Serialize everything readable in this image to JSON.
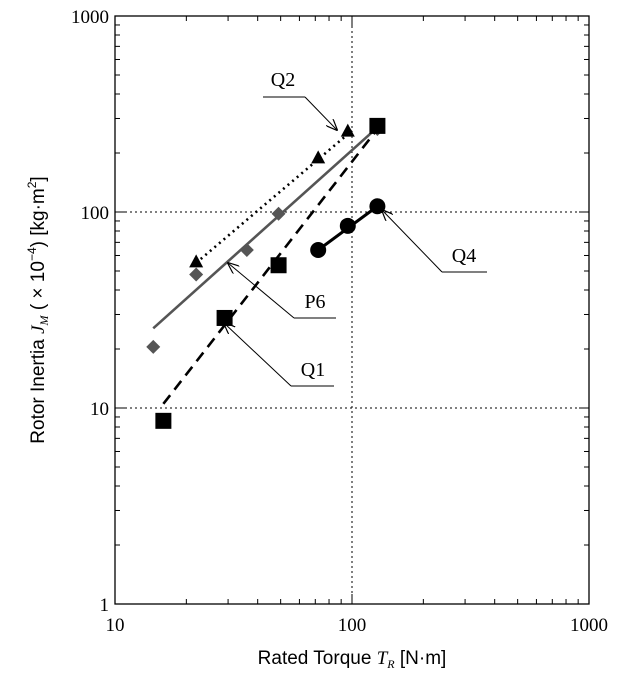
{
  "chart_data": {
    "type": "scatter",
    "x_scale": "log",
    "y_scale": "log",
    "xlim": [
      10,
      1000
    ],
    "ylim": [
      1,
      1000
    ],
    "grid": "major dotted at 100 and 10/100",
    "x_ticks": [
      "10",
      "100",
      "1000"
    ],
    "y_ticks": [
      "1",
      "10",
      "100",
      "1000"
    ],
    "xlabel": {
      "text": "Rated Torque",
      "symbol": "T",
      "subscript": "R",
      "unit": "[N·m]"
    },
    "ylabel": {
      "text": "Rotor Inertia",
      "symbol": "J",
      "subscript": "M",
      "multiplier": "( × 10",
      "exponent": "−4",
      "multiplier_close": ")",
      "unit_open": "[kg·m",
      "unit_exp": "2",
      "unit_close": "]"
    },
    "series": [
      {
        "name": "Q2",
        "marker": "triangle",
        "color": "#000000",
        "x": [
          22,
          72,
          96,
          128
        ],
        "y": [
          56,
          190,
          260,
          270
        ],
        "fit": {
          "style": "dotted",
          "color": "#000000",
          "x": [
            22,
            100
          ],
          "y": [
            55,
            260
          ]
        }
      },
      {
        "name": "P6",
        "marker": "diamond",
        "color": "#555555",
        "x": [
          14.5,
          22,
          36,
          49,
          128
        ],
        "y": [
          20.5,
          48,
          64,
          98,
          265
        ],
        "fit": {
          "style": "solid",
          "color": "#555555",
          "x": [
            14.5,
            128
          ],
          "y": [
            25.5,
            270
          ]
        }
      },
      {
        "name": "Q1",
        "marker": "square",
        "color": "#000000",
        "x": [
          16,
          29,
          49,
          128
        ],
        "y": [
          8.6,
          28.8,
          53.5,
          275
        ],
        "fit": {
          "style": "dashed",
          "color": "#000000",
          "x": [
            16,
            128
          ],
          "y": [
            10.5,
            265
          ]
        }
      },
      {
        "name": "Q4",
        "marker": "circle",
        "color": "#000000",
        "x": [
          72,
          96,
          128
        ],
        "y": [
          64,
          85,
          107
        ],
        "fit": {
          "style": "solid",
          "color": "#000000",
          "x": [
            72,
            128
          ],
          "y": [
            64,
            107
          ]
        }
      }
    ],
    "annotations": [
      {
        "label": "Q2",
        "series": "Q2"
      },
      {
        "label": "P6",
        "series": "P6"
      },
      {
        "label": "Q1",
        "series": "Q1"
      },
      {
        "label": "Q4",
        "series": "Q4"
      }
    ]
  }
}
